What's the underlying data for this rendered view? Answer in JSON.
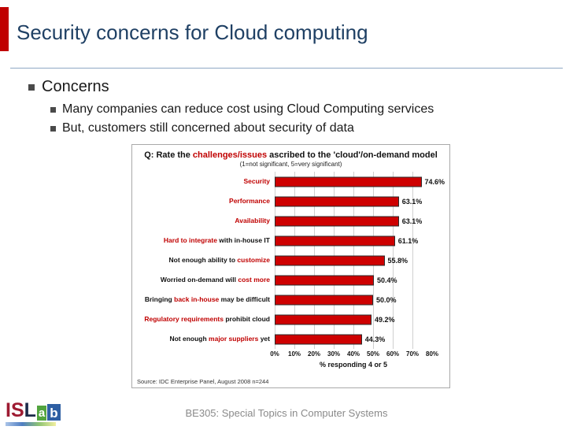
{
  "slide": {
    "title": "Security concerns for Cloud computing",
    "bullet_level1": "Concerns",
    "bullets_level2": [
      "Many companies can reduce cost using Cloud Computing services",
      "But, customers still concerned about security of data"
    ],
    "footer": "BE305: Special Topics in Computer Systems",
    "accent_color": "#C00000",
    "logo": {
      "is": "IS",
      "l": "L",
      "a": "a",
      "b": "b"
    }
  },
  "chart_data": {
    "type": "bar",
    "orientation": "horizontal",
    "title_segments": [
      {
        "text": "Q: Rate the ",
        "color": "#111111"
      },
      {
        "text": "challenges/issues",
        "color": "#C00000"
      },
      {
        "text": " ascribed to the 'cloud'/on-demand model",
        "color": "#111111"
      }
    ],
    "subtitle": "(1=not significant, 5=very significant)",
    "categories": [
      "Security",
      "Performance",
      "Availability",
      "Hard to integrate with in-house IT",
      "Not enough ability to customize",
      "Worried on-demand will cost more",
      "Bringing back in-house may be difficult",
      "Regulatory requirements prohibit cloud",
      "Not enough major suppliers yet"
    ],
    "values": [
      74.6,
      63.1,
      63.1,
      61.1,
      55.8,
      50.4,
      50.0,
      49.2,
      44.3
    ],
    "rows": [
      {
        "label_segments": [
          {
            "text": "Security",
            "color": "#C00000"
          }
        ],
        "value": 74.6,
        "value_label": "74.6%"
      },
      {
        "label_segments": [
          {
            "text": "Performance",
            "color": "#C00000"
          }
        ],
        "value": 63.1,
        "value_label": "63.1%"
      },
      {
        "label_segments": [
          {
            "text": "Availability",
            "color": "#C00000"
          }
        ],
        "value": 63.1,
        "value_label": "63.1%"
      },
      {
        "label_segments": [
          {
            "text": "Hard to integrate",
            "color": "#C00000"
          },
          {
            "text": " with in-house IT",
            "color": "#111111"
          }
        ],
        "value": 61.1,
        "value_label": "61.1%"
      },
      {
        "label_segments": [
          {
            "text": "Not enough ability to ",
            "color": "#111111"
          },
          {
            "text": "customize",
            "color": "#C00000"
          }
        ],
        "value": 55.8,
        "value_label": "55.8%"
      },
      {
        "label_segments": [
          {
            "text": "Worried on-demand will ",
            "color": "#111111"
          },
          {
            "text": "cost more",
            "color": "#C00000"
          }
        ],
        "value": 50.4,
        "value_label": "50.4%"
      },
      {
        "label_segments": [
          {
            "text": "Bringing ",
            "color": "#111111"
          },
          {
            "text": "back in-house",
            "color": "#C00000"
          },
          {
            "text": " may be difficult",
            "color": "#111111"
          }
        ],
        "value": 50.0,
        "value_label": "50.0%"
      },
      {
        "label_segments": [
          {
            "text": "Regulatory requirements",
            "color": "#C00000"
          },
          {
            "text": " prohibit cloud",
            "color": "#111111"
          }
        ],
        "value": 49.2,
        "value_label": "49.2%"
      },
      {
        "label_segments": [
          {
            "text": "Not enough ",
            "color": "#111111"
          },
          {
            "text": "major suppliers",
            "color": "#C00000"
          },
          {
            "text": " yet",
            "color": "#111111"
          }
        ],
        "value": 44.3,
        "value_label": "44.3%"
      }
    ],
    "x_ticks": [
      "0%",
      "10%",
      "20%",
      "30%",
      "40%",
      "50%",
      "60%",
      "70%",
      "80%"
    ],
    "xlim": [
      0,
      80
    ],
    "xlabel": "% responding 4 or 5",
    "bar_color": "#CE0000",
    "grid": true,
    "source": "Source: IDC Enterprise Panel, August 2008  n=244"
  }
}
